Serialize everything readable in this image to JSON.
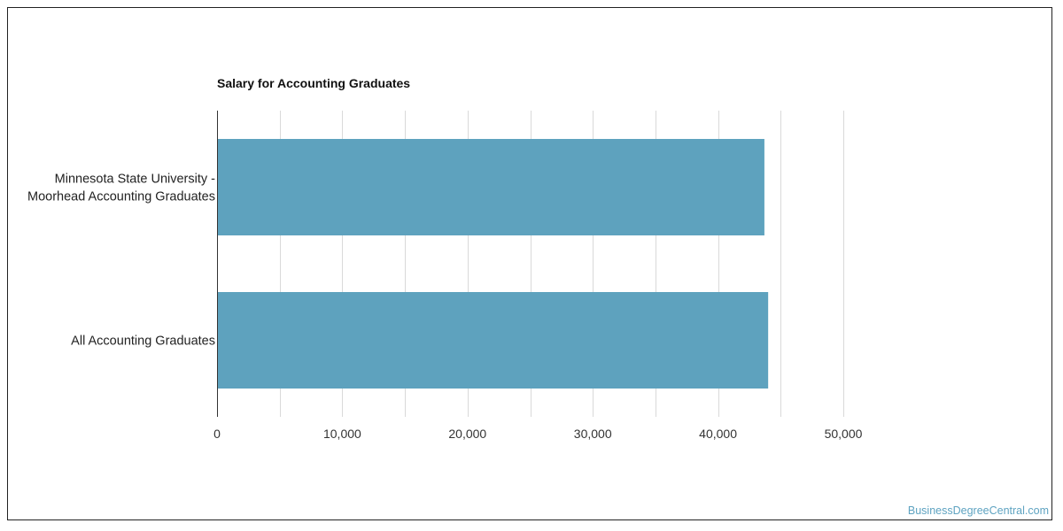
{
  "colors": {
    "bar": "#5ea2be",
    "grid": "#d9d9d9",
    "axis": "#333333",
    "watermark": "#5ea3c1"
  },
  "watermark": "BusinessDegreeCentral.com",
  "chart_data": {
    "type": "bar",
    "orientation": "horizontal",
    "title": "Salary for Accounting Graduates",
    "categories": [
      [
        "Minnesota State University -",
        "Moorhead Accounting Graduates"
      ],
      [
        "All Accounting Graduates"
      ]
    ],
    "values": [
      43700,
      44000
    ],
    "xlim": [
      0,
      50000
    ],
    "xticks": [
      0,
      10000,
      20000,
      30000,
      40000,
      50000
    ],
    "xtick_labels": [
      "0",
      "10,000",
      "20,000",
      "30,000",
      "40,000",
      "50,000"
    ],
    "grid": true,
    "legend": "none"
  }
}
